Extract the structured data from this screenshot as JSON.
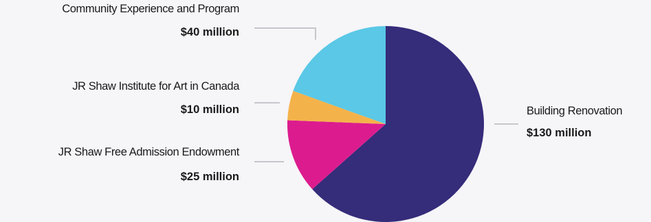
{
  "chart_data": {
    "type": "pie",
    "title": "",
    "unit": "million",
    "slices": [
      {
        "label": "Building Renovation",
        "value": 130,
        "value_label": "$130 million",
        "color": "#352c7a"
      },
      {
        "label": "JR Shaw Free Admission Endowment",
        "value": 25,
        "value_label": "$25 million",
        "color": "#dc1c8e"
      },
      {
        "label": "JR Shaw Institute for Art in Canada",
        "value": 10,
        "value_label": "$10 million",
        "color": "#f4b24b"
      },
      {
        "label": "Community Experience and Program",
        "value": 40,
        "value_label": "$40  million",
        "color": "#5ac8e6"
      }
    ],
    "start_angle_deg": 0,
    "direction": "clockwise",
    "leader_color": "#c6c6cc"
  }
}
